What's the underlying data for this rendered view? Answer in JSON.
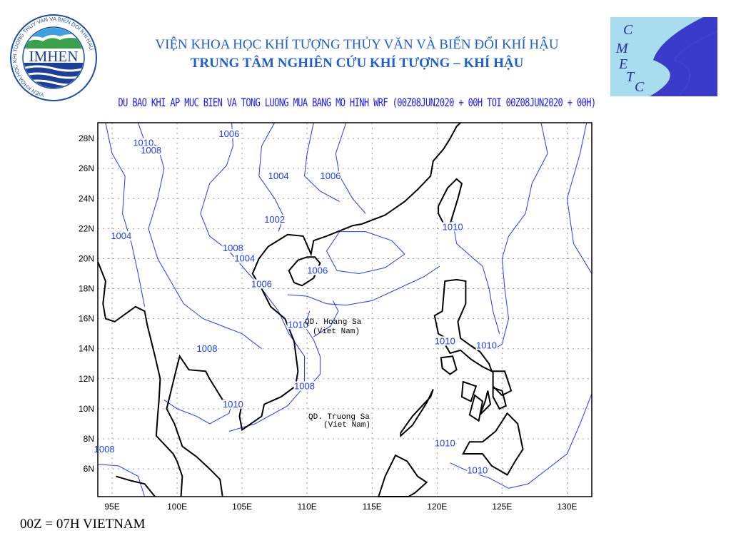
{
  "header": {
    "left_logo": {
      "name": "IMHEN",
      "ring_text": "VIEN KHOA HOC KHI TUONG THUY VAN VA BIEN DOI KHI HAU"
    },
    "right_logo": {
      "letters": "CMETC"
    },
    "title_line1": "VIỆN KHOA HỌC KHÍ TƯỢNG THỦY VĂN VÀ BIẾN ĐỔI KHÍ HẬU",
    "title_line2": "TRUNG TÂM NGHIÊN CỨU KHÍ TƯỢNG – KHÍ HẬU",
    "subtitle": "DU BAO KHI AP MUC BIEN VA TONG LUONG MUA BANG MO HINH WRF (00Z08JUN2020 + 00H TOI 00Z08JUN2020 + 00H)"
  },
  "map": {
    "lon_ticks": [
      "95E",
      "100E",
      "105E",
      "110E",
      "115E",
      "120E",
      "125E",
      "130E"
    ],
    "lat_ticks": [
      "28N",
      "26N",
      "24N",
      "22N",
      "20N",
      "18N",
      "16N",
      "14N",
      "12N",
      "10N",
      "8N",
      "6N"
    ],
    "contour_labels": [
      "1006",
      "1010",
      "1008",
      "1004",
      "1006",
      "1002",
      "1004",
      "1008",
      "1004",
      "1006",
      "1006",
      "1010",
      "1008",
      "1008",
      "1010",
      "1010",
      "1010",
      "1010",
      "1008",
      "1010",
      "1010"
    ],
    "islands": {
      "paracel": [
        "QD. Hoang Sa",
        "(Viet Nam)"
      ],
      "spratly": [
        "QD. Truong Sa",
        "(Viet Nam)"
      ]
    },
    "colors": {
      "contour": "#1a3cff",
      "coast": "#000000",
      "grid": "#9a9a9a"
    }
  },
  "footer": "00Z = 07H VIETNAM"
}
